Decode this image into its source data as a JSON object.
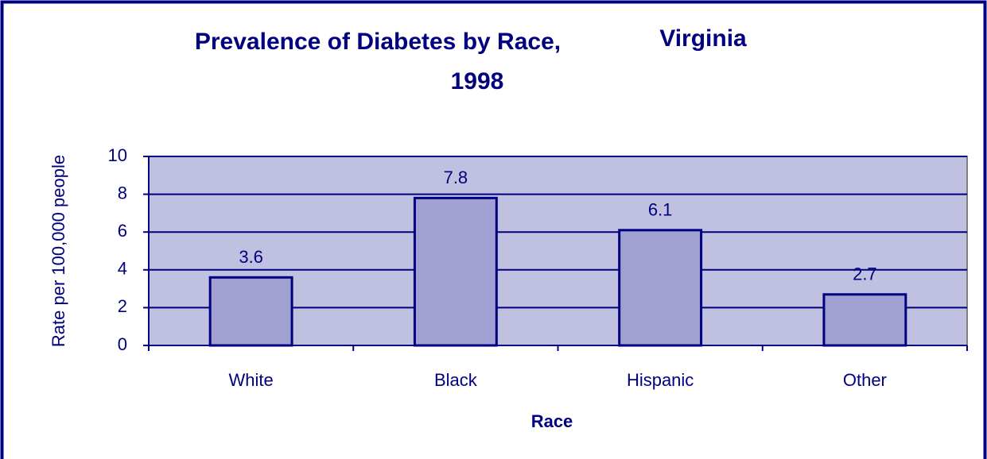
{
  "chart_data": {
    "type": "bar",
    "title": [
      "Prevalence of Diabetes by Race,",
      "Virginia",
      "1998"
    ],
    "x_label": "Race",
    "y_label": "Rate per 100,000 people",
    "categories": [
      "White",
      "Black",
      "Hispanic",
      "Other"
    ],
    "values": [
      3.6,
      7.8,
      6.1,
      2.7
    ],
    "color": "#a0a0d2",
    "plot_background": "#c0c0e0",
    "ylim": [
      0,
      10
    ],
    "yticks": [
      0,
      2,
      4,
      6,
      8,
      10
    ],
    "grid": true
  }
}
